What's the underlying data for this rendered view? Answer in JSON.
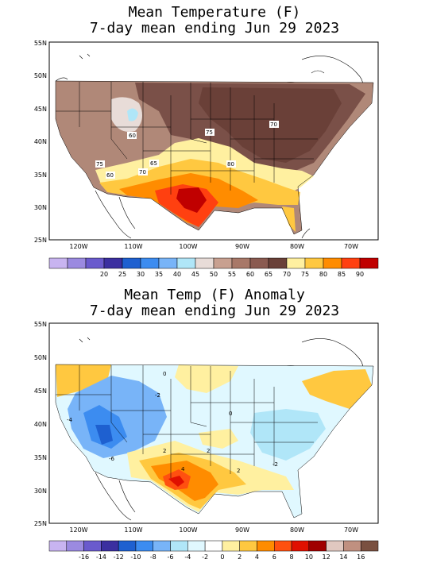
{
  "top": {
    "title_line1": "Mean Temperature (F)",
    "title_line2": "7-day mean ending Jun 29 2023",
    "lat_labels": [
      "55N",
      "50N",
      "45N",
      "40N",
      "35N",
      "30N",
      "25N"
    ],
    "lon_labels": [
      "120W",
      "110W",
      "100W",
      "90W",
      "80W",
      "70W"
    ],
    "contour_labels": [
      "60",
      "75",
      "70",
      "75",
      "80",
      "65",
      "70",
      "60"
    ],
    "legend_colors": [
      "#c8b4f0",
      "#9b8ae0",
      "#6a5acd",
      "#3b2fa0",
      "#1e60d0",
      "#3c8cf0",
      "#78b4f8",
      "#b0e6f8",
      "#e8dcd8",
      "#c8a090",
      "#a87868",
      "#8a5a50",
      "#6a4038",
      "#fff0a0",
      "#ffc840",
      "#ff8c00",
      "#ff4010",
      "#c00000"
    ],
    "legend_labels": [
      "20",
      "25",
      "30",
      "35",
      "40",
      "45",
      "50",
      "55",
      "60",
      "65",
      "70",
      "75",
      "80",
      "85",
      "90"
    ]
  },
  "bottom": {
    "title_line1": "Mean Temp (F) Anomaly",
    "title_line2": "7-day mean ending Jun 29 2023",
    "lat_labels": [
      "55N",
      "50N",
      "45N",
      "40N",
      "35N",
      "30N",
      "25N"
    ],
    "lon_labels": [
      "120W",
      "110W",
      "100W",
      "90W",
      "80W",
      "70W"
    ],
    "contour_labels": [
      "-4",
      "-6",
      "-2",
      "0",
      "2",
      "2",
      "4",
      "0",
      "-2",
      "2"
    ],
    "legend_colors": [
      "#c8b4f0",
      "#9b8ae0",
      "#6a5acd",
      "#3b2fa0",
      "#1e60d0",
      "#3c8cf0",
      "#78b4f8",
      "#b0e6f8",
      "#e0f8ff",
      "#ffffff",
      "#fff0a0",
      "#ffc840",
      "#ff8c00",
      "#ff5010",
      "#e01000",
      "#a00000",
      "#e0c8c0",
      "#c09080",
      "#7a5040"
    ],
    "legend_labels": [
      "-16",
      "-14",
      "-12",
      "-10",
      "-8",
      "-6",
      "-4",
      "-2",
      "0",
      "2",
      "4",
      "6",
      "8",
      "10",
      "12",
      "14",
      "16"
    ]
  }
}
